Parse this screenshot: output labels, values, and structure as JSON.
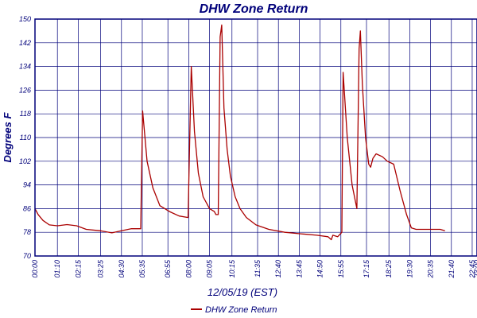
{
  "chart_data": {
    "type": "line",
    "title": "DHW Zone Return",
    "ylabel": "Degrees F",
    "xlabel": "12/05/19 (EST)",
    "ylim": [
      70,
      150
    ],
    "yticks": [
      70,
      78,
      86,
      94,
      102,
      110,
      118,
      126,
      134,
      142,
      150
    ],
    "xlim": [
      0,
      1380
    ],
    "xticks": [
      {
        "label": "00:00",
        "t": 0
      },
      {
        "label": "01:10",
        "t": 70
      },
      {
        "label": "02:15",
        "t": 135
      },
      {
        "label": "03:25",
        "t": 205
      },
      {
        "label": "04:30",
        "t": 270
      },
      {
        "label": "05:35",
        "t": 335
      },
      {
        "label": "06:55",
        "t": 415
      },
      {
        "label": "08:00",
        "t": 480
      },
      {
        "label": "09:05",
        "t": 545
      },
      {
        "label": "10:15",
        "t": 615
      },
      {
        "label": "11:35",
        "t": 695
      },
      {
        "label": "12:40",
        "t": 760
      },
      {
        "label": "13:45",
        "t": 825
      },
      {
        "label": "14:50",
        "t": 890
      },
      {
        "label": "15:55",
        "t": 955
      },
      {
        "label": "17:15",
        "t": 1035
      },
      {
        "label": "18:25",
        "t": 1105
      },
      {
        "label": "19:30",
        "t": 1170
      },
      {
        "label": "20:35",
        "t": 1235
      },
      {
        "label": "21:40",
        "t": 1300
      },
      {
        "label": "22:45",
        "t": 1365
      },
      {
        "label": "23:00",
        "t": 1380
      }
    ],
    "grid": true,
    "legend_position": "bottom-center",
    "series": [
      {
        "name": "DHW Zone Return",
        "color": "#aa0000",
        "points": [
          [
            0,
            86
          ],
          [
            10,
            84
          ],
          [
            25,
            82
          ],
          [
            45,
            80.5
          ],
          [
            70,
            80.2
          ],
          [
            100,
            80.6
          ],
          [
            130,
            80.2
          ],
          [
            160,
            79
          ],
          [
            205,
            78.5
          ],
          [
            240,
            77.8
          ],
          [
            270,
            78.5
          ],
          [
            300,
            79.2
          ],
          [
            330,
            79.2
          ],
          [
            336,
            119
          ],
          [
            350,
            102
          ],
          [
            368,
            93
          ],
          [
            390,
            87
          ],
          [
            420,
            85
          ],
          [
            450,
            83.5
          ],
          [
            478,
            83
          ],
          [
            482,
            104
          ],
          [
            488,
            134
          ],
          [
            498,
            112
          ],
          [
            510,
            98
          ],
          [
            525,
            90
          ],
          [
            545,
            86
          ],
          [
            560,
            85
          ],
          [
            565,
            84
          ],
          [
            572,
            84
          ],
          [
            578,
            144
          ],
          [
            583,
            148
          ],
          [
            590,
            120
          ],
          [
            600,
            106
          ],
          [
            610,
            97
          ],
          [
            625,
            90
          ],
          [
            640,
            86
          ],
          [
            660,
            83
          ],
          [
            690,
            80.5
          ],
          [
            730,
            79
          ],
          [
            780,
            78
          ],
          [
            830,
            77.5
          ],
          [
            880,
            77
          ],
          [
            915,
            76.5
          ],
          [
            925,
            75.5
          ],
          [
            930,
            77
          ],
          [
            945,
            76.5
          ],
          [
            958,
            78
          ],
          [
            962,
            132
          ],
          [
            975,
            110
          ],
          [
            990,
            94
          ],
          [
            1005,
            86
          ],
          [
            1012,
            140
          ],
          [
            1016,
            146
          ],
          [
            1022,
            128
          ],
          [
            1032,
            110
          ],
          [
            1042,
            101
          ],
          [
            1048,
            100
          ],
          [
            1055,
            103
          ],
          [
            1065,
            104.5
          ],
          [
            1085,
            103.5
          ],
          [
            1100,
            102
          ],
          [
            1120,
            101
          ],
          [
            1140,
            92
          ],
          [
            1160,
            84
          ],
          [
            1175,
            79.5
          ],
          [
            1190,
            79
          ],
          [
            1230,
            79
          ],
          [
            1265,
            79
          ],
          [
            1280,
            78.5
          ]
        ]
      }
    ]
  },
  "colors": {
    "axis_text": "#00007a",
    "grid": "#00007a",
    "line": "#aa0000",
    "background": "#ffffff"
  }
}
